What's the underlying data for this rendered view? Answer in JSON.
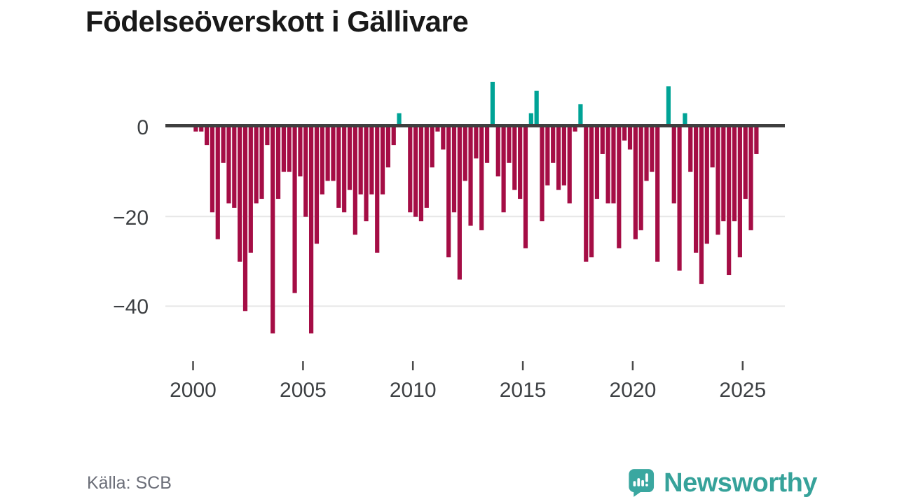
{
  "title": "Födelseöverskott i Gällivare",
  "source": "Källa: SCB",
  "branding": {
    "name": "Newsworthy"
  },
  "colors": {
    "negative": "#a50d45",
    "positive": "#00a396",
    "zero_line": "#3f3f3f",
    "gridline": "#e7e7e7",
    "axis_text": "#3d4043",
    "source_text": "#6b6e78",
    "brand": "#36a29a"
  },
  "chart_data": {
    "type": "bar",
    "title": "Födelseöverskott i Gällivare",
    "xlabel": "",
    "ylabel": "",
    "x_start_year": 2000,
    "x_start_quarter": 1,
    "frequency": "quarterly",
    "x_tick_years": [
      2000,
      2005,
      2010,
      2015,
      2020,
      2025
    ],
    "x_tick_labels": [
      "2000",
      "2005",
      "2010",
      "2015",
      "2020",
      "2025"
    ],
    "y_ticks": [
      0,
      -20,
      -40
    ],
    "y_tick_labels": [
      "0",
      "−20",
      "−40"
    ],
    "ylim": [
      -48,
      12
    ],
    "grid": "horizontal",
    "legend": "none",
    "values": [
      -1,
      -1,
      -4,
      -19,
      -25,
      -8,
      -17,
      -18,
      -30,
      -41,
      -28,
      -17,
      -16,
      -4,
      -46,
      -16,
      -10,
      -10,
      -37,
      -11,
      -20,
      -46,
      -26,
      -15,
      -12,
      -12,
      -18,
      -19,
      -14,
      -24,
      -15,
      -21,
      -15,
      -28,
      -15,
      -9,
      -4,
      3,
      0,
      -19,
      -20,
      -21,
      -18,
      -9,
      -1,
      -5,
      -29,
      -19,
      -34,
      -12,
      -22,
      -7,
      -23,
      -8,
      10,
      -11,
      -19,
      -8,
      -14,
      -16,
      -27,
      3,
      8,
      -21,
      -13,
      -8,
      -14,
      -13,
      -17,
      -1,
      5,
      -30,
      -29,
      -16,
      -6,
      -17,
      -17,
      -27,
      -3,
      -5,
      -25,
      -23,
      -12,
      -10,
      -30,
      0,
      9,
      -17,
      -32,
      3,
      -10,
      -28,
      -35,
      -26,
      -9,
      -24,
      -21,
      -33,
      -21,
      -29,
      -16,
      -23,
      -6
    ]
  }
}
